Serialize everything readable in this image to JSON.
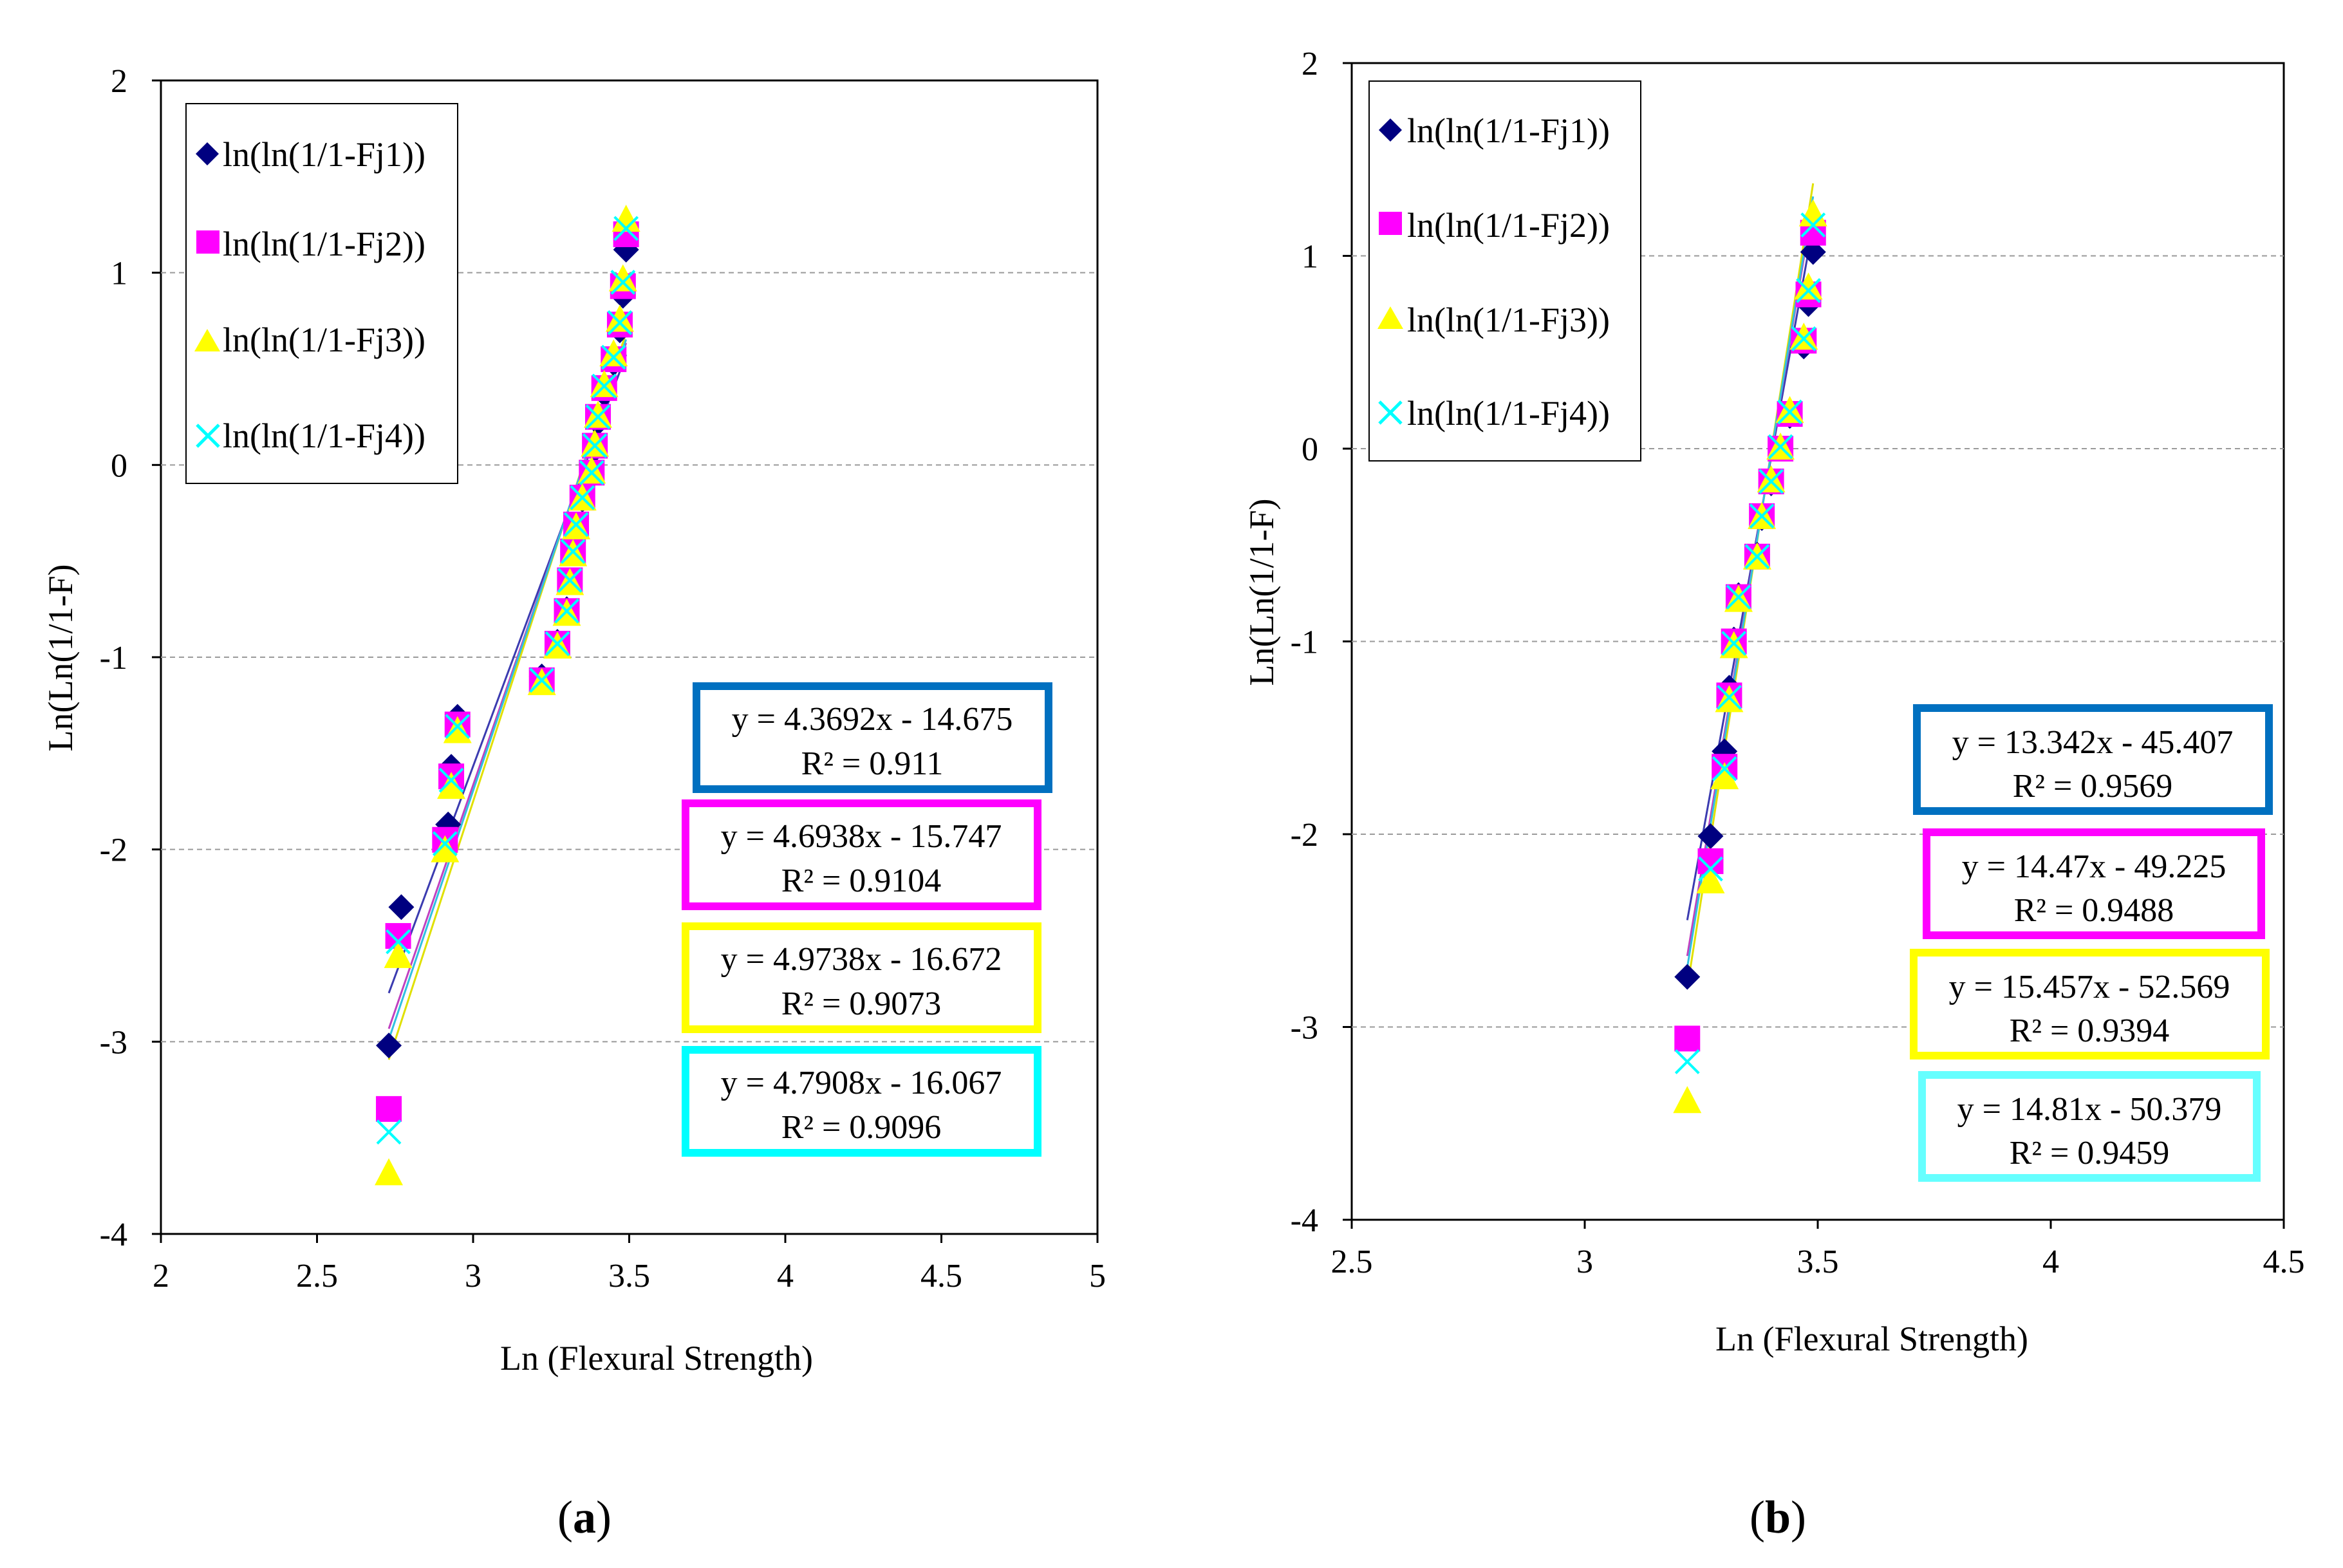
{
  "figure": {
    "panels": [
      {
        "id": "a",
        "label": "(a)",
        "label_text": "a",
        "legend": [
          {
            "label": "ln(ln(1/1-Fj1))",
            "marker": "diamond",
            "color": "#000080"
          },
          {
            "label": "ln(ln(1/1-Fj2))",
            "marker": "square",
            "color": "#FF00FF"
          },
          {
            "label": "ln(ln(1/1-Fj3))",
            "marker": "triangle",
            "color": "#FFFF00"
          },
          {
            "label": "ln(ln(1/1-Fj4))",
            "marker": "cross",
            "color": "#00FFFF"
          }
        ],
        "equations": [
          {
            "eq": "y = 4.3692x - 14.675",
            "r2": "R² = 0.911",
            "border_color": "#0070C0"
          },
          {
            "eq": "y = 4.6938x - 15.747",
            "r2": "R² = 0.9104",
            "border_color": "#FF00FF"
          },
          {
            "eq": "y = 4.9738x - 16.672",
            "r2": "R² = 0.9073",
            "border_color": "#FFFF00"
          },
          {
            "eq": "y = 4.7908x - 16.067",
            "r2": "R² = 0.9096",
            "border_color": "#00FFFF"
          }
        ]
      },
      {
        "id": "b",
        "label": "(b)",
        "label_text": "b",
        "legend": [
          {
            "label": "ln(ln(1/1-Fj1))",
            "marker": "diamond",
            "color": "#000080"
          },
          {
            "label": "ln(ln(1/1-Fj2))",
            "marker": "square",
            "color": "#FF00FF"
          },
          {
            "label": "ln(ln(1/1-Fj3))",
            "marker": "triangle",
            "color": "#FFFF00"
          },
          {
            "label": "ln(ln(1/1-Fj4))",
            "marker": "cross",
            "color": "#00FFFF"
          }
        ],
        "equations": [
          {
            "eq": "y = 13.342x - 45.407",
            "r2": "R² = 0.9569",
            "border_color": "#0070C0"
          },
          {
            "eq": "y = 14.47x - 49.225",
            "r2": "R² = 0.9488",
            "border_color": "#FF00FF"
          },
          {
            "eq": "y = 15.457x - 52.569",
            "r2": "R² = 0.9394",
            "border_color": "#FFFF00"
          },
          {
            "eq": "y = 14.81x - 50.379",
            "r2": "R² = 0.9459",
            "border_color": "#66FFFF"
          }
        ]
      }
    ]
  },
  "chart_data": [
    {
      "type": "scatter",
      "panel": "a",
      "title": "",
      "xlabel": "Ln (Flexural Strength)",
      "ylabel": "Ln(Ln(1/1-F)",
      "xlim": [
        2,
        5
      ],
      "ylim": [
        -4,
        2
      ],
      "xticks": [
        "2",
        "2.5",
        "3",
        "3.5",
        "4",
        "4.5",
        "5"
      ],
      "yticks": [
        "2",
        "1",
        "0",
        "-1",
        "-2",
        "-3",
        "-4"
      ],
      "xtick_values": [
        2,
        2.5,
        3,
        3.5,
        4,
        4.5,
        5
      ],
      "ytick_values": [
        2,
        1,
        0,
        -1,
        -2,
        -3,
        -4
      ],
      "gridlines_y": [
        1,
        0,
        -1,
        -2,
        -3
      ],
      "grid": "horizontal dashed",
      "legend_position": "top-left",
      "series": [
        {
          "name": "ln(ln(1/1-Fj1))",
          "marker": "diamond",
          "color": "#000080",
          "x": [
            2.73,
            2.77,
            2.92,
            2.93,
            2.95,
            3.22,
            3.27,
            3.3,
            3.31,
            3.32,
            3.33,
            3.35,
            3.38,
            3.39,
            3.4,
            3.42,
            3.45,
            3.47,
            3.48,
            3.49
          ],
          "y": [
            -3.02,
            -2.3,
            -1.87,
            -1.57,
            -1.31,
            -1.1,
            -0.92,
            -0.75,
            -0.6,
            -0.45,
            -0.32,
            -0.18,
            -0.05,
            0.08,
            0.22,
            0.37,
            0.53,
            0.7,
            0.88,
            1.12
          ],
          "trend": {
            "slope": 4.3692,
            "intercept": -14.675,
            "x_range": [
              2.73,
              3.49
            ]
          }
        },
        {
          "name": "ln(ln(1/1-Fj2))",
          "marker": "square",
          "color": "#FF00FF",
          "x": [
            2.73,
            2.76,
            2.91,
            2.93,
            2.95,
            3.22,
            3.27,
            3.3,
            3.31,
            3.32,
            3.33,
            3.35,
            3.38,
            3.39,
            3.4,
            3.42,
            3.45,
            3.47,
            3.48,
            3.49
          ],
          "y": [
            -3.35,
            -2.45,
            -1.95,
            -1.62,
            -1.35,
            -1.12,
            -0.93,
            -0.76,
            -0.6,
            -0.45,
            -0.31,
            -0.17,
            -0.04,
            0.1,
            0.25,
            0.4,
            0.55,
            0.73,
            0.93,
            1.2
          ],
          "trend": {
            "slope": 4.6938,
            "intercept": -15.747,
            "x_range": [
              2.73,
              3.49
            ]
          }
        },
        {
          "name": "ln(ln(1/1-Fj3))",
          "marker": "triangle",
          "color": "#FFFF00",
          "x": [
            2.73,
            2.76,
            2.91,
            2.93,
            2.95,
            3.22,
            3.27,
            3.3,
            3.31,
            3.32,
            3.33,
            3.35,
            3.38,
            3.39,
            3.4,
            3.42,
            3.45,
            3.47,
            3.48,
            3.49
          ],
          "y": [
            -3.68,
            -2.55,
            -2.0,
            -1.67,
            -1.38,
            -1.13,
            -0.94,
            -0.77,
            -0.61,
            -0.46,
            -0.32,
            -0.17,
            -0.03,
            0.11,
            0.26,
            0.42,
            0.58,
            0.76,
            0.97,
            1.28
          ],
          "trend": {
            "slope": 4.9738,
            "intercept": -16.672,
            "x_range": [
              2.73,
              3.49
            ]
          }
        },
        {
          "name": "ln(ln(1/1-Fj4))",
          "marker": "cross",
          "color": "#00FFFF",
          "x": [
            2.73,
            2.76,
            2.91,
            2.93,
            2.95,
            3.22,
            3.27,
            3.3,
            3.31,
            3.32,
            3.33,
            3.35,
            3.38,
            3.39,
            3.4,
            3.42,
            3.45,
            3.47,
            3.48,
            3.49
          ],
          "y": [
            -3.47,
            -2.48,
            -1.97,
            -1.64,
            -1.36,
            -1.12,
            -0.93,
            -0.76,
            -0.6,
            -0.45,
            -0.31,
            -0.17,
            -0.04,
            0.1,
            0.25,
            0.41,
            0.56,
            0.74,
            0.95,
            1.23
          ],
          "trend": {
            "slope": 4.7908,
            "intercept": -16.067,
            "x_range": [
              2.73,
              3.49
            ]
          }
        }
      ]
    },
    {
      "type": "scatter",
      "panel": "b",
      "title": "",
      "xlabel": "Ln (Flexural Strength)",
      "ylabel": "Ln(Ln(1/1-F)",
      "xlim": [
        2.5,
        4.5
      ],
      "ylim": [
        -4,
        2
      ],
      "xticks": [
        "2.5",
        "3",
        "3.5",
        "4",
        "4.5"
      ],
      "yticks": [
        "2",
        "1",
        "0",
        "-1",
        "-2",
        "-3",
        "-4"
      ],
      "xtick_values": [
        2.5,
        3,
        3.5,
        4,
        4.5
      ],
      "ytick_values": [
        2,
        1,
        0,
        -1,
        -2,
        -3,
        -4
      ],
      "gridlines_y": [
        1,
        0,
        -1,
        -2,
        -3
      ],
      "grid": "horizontal dashed",
      "legend_position": "top-left",
      "series": [
        {
          "name": "ln(ln(1/1-Fj1))",
          "marker": "diamond",
          "color": "#000080",
          "x": [
            3.22,
            3.27,
            3.3,
            3.31,
            3.32,
            3.33,
            3.37,
            3.38,
            3.4,
            3.42,
            3.44,
            3.47,
            3.48,
            3.49
          ],
          "y": [
            -2.74,
            -2.01,
            -1.57,
            -1.24,
            -0.99,
            -0.76,
            -0.55,
            -0.36,
            -0.18,
            0.0,
            0.17,
            0.53,
            0.75,
            1.02
          ],
          "trend": {
            "slope": 13.342,
            "intercept": -45.407,
            "x_range": [
              3.22,
              3.49
            ]
          }
        },
        {
          "name": "ln(ln(1/1-Fj2))",
          "marker": "square",
          "color": "#FF00FF",
          "x": [
            3.22,
            3.27,
            3.3,
            3.31,
            3.32,
            3.33,
            3.37,
            3.38,
            3.4,
            3.42,
            3.44,
            3.47,
            3.48,
            3.49
          ],
          "y": [
            -3.06,
            -2.14,
            -1.65,
            -1.28,
            -1.0,
            -0.77,
            -0.56,
            -0.35,
            -0.17,
            0.0,
            0.18,
            0.56,
            0.8,
            1.12
          ],
          "trend": {
            "slope": 14.47,
            "intercept": -49.225,
            "x_range": [
              3.22,
              3.49
            ]
          }
        },
        {
          "name": "ln(ln(1/1-Fj3))",
          "marker": "triangle",
          "color": "#FFFF00",
          "x": [
            3.22,
            3.27,
            3.3,
            3.31,
            3.32,
            3.33,
            3.37,
            3.38,
            3.4,
            3.42,
            3.44,
            3.47,
            3.48,
            3.49
          ],
          "y": [
            -3.38,
            -2.24,
            -1.7,
            -1.3,
            -1.02,
            -0.78,
            -0.56,
            -0.35,
            -0.16,
            0.01,
            0.2,
            0.58,
            0.84,
            1.22
          ],
          "trend": {
            "slope": 15.457,
            "intercept": -52.569,
            "x_range": [
              3.22,
              3.49
            ]
          }
        },
        {
          "name": "ln(ln(1/1-Fj4))",
          "marker": "cross",
          "color": "#00FFFF",
          "x": [
            3.22,
            3.27,
            3.3,
            3.31,
            3.32,
            3.33,
            3.37,
            3.38,
            3.4,
            3.42,
            3.44,
            3.47,
            3.48,
            3.49
          ],
          "y": [
            -3.18,
            -2.18,
            -1.66,
            -1.29,
            -1.01,
            -0.77,
            -0.56,
            -0.35,
            -0.17,
            0.01,
            0.19,
            0.57,
            0.82,
            1.16
          ],
          "trend": {
            "slope": 14.81,
            "intercept": -50.379,
            "x_range": [
              3.22,
              3.49
            ]
          }
        }
      ]
    }
  ]
}
